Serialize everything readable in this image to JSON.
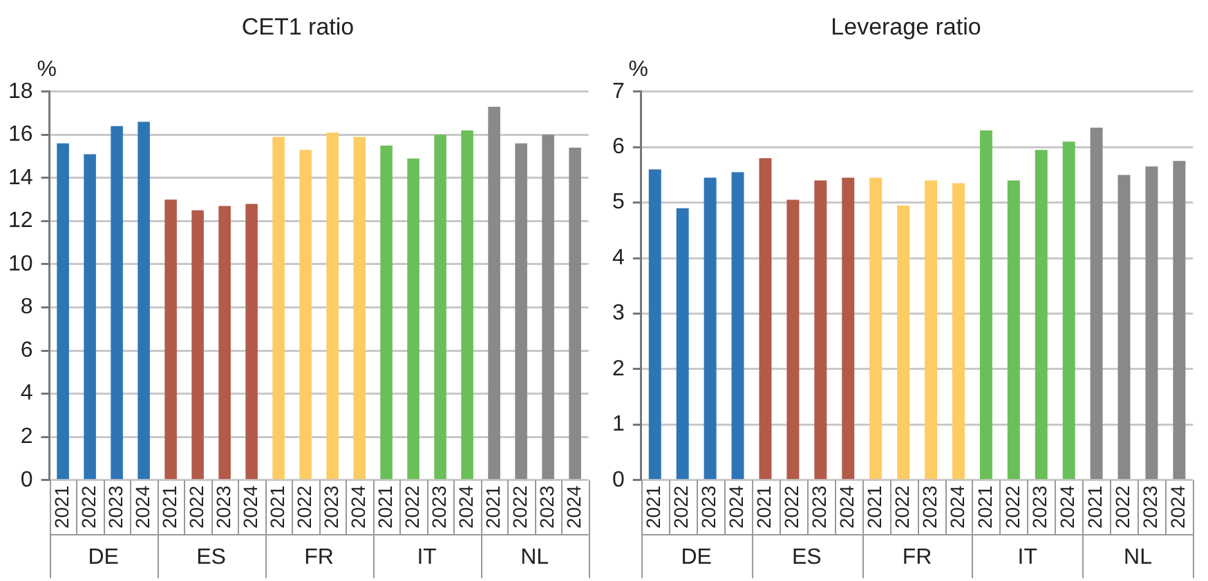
{
  "chart_data": [
    {
      "type": "bar",
      "title": "CET1 ratio",
      "ylabel": "%",
      "categories": [
        "2021",
        "2022",
        "2023",
        "2024",
        "2021",
        "2022",
        "2023",
        "2024",
        "2021",
        "2022",
        "2023",
        "2024",
        "2021",
        "2022",
        "2023",
        "2024",
        "2021",
        "2022",
        "2023",
        "2024"
      ],
      "series": [
        {
          "name": "DE",
          "color": "#2e75b6",
          "values": [
            15.6,
            15.1,
            16.4,
            16.6,
            null,
            null,
            null,
            null,
            null,
            null,
            null,
            null,
            null,
            null,
            null,
            null,
            null,
            null,
            null,
            null
          ]
        },
        {
          "name": "ES",
          "color": "#b35a49",
          "values": [
            null,
            null,
            null,
            null,
            13.0,
            12.5,
            12.7,
            12.8,
            null,
            null,
            null,
            null,
            null,
            null,
            null,
            null,
            null,
            null,
            null,
            null
          ]
        },
        {
          "name": "FR",
          "color": "#fdcc62",
          "values": [
            null,
            null,
            null,
            null,
            null,
            null,
            null,
            null,
            15.9,
            15.3,
            16.1,
            15.9,
            null,
            null,
            null,
            null,
            null,
            null,
            null,
            null
          ]
        },
        {
          "name": "IT",
          "color": "#6abf59",
          "values": [
            null,
            null,
            null,
            null,
            null,
            null,
            null,
            null,
            null,
            null,
            null,
            null,
            15.5,
            14.9,
            16.0,
            16.2,
            null,
            null,
            null,
            null
          ]
        },
        {
          "name": "NL",
          "color": "#898989",
          "values": [
            null,
            null,
            null,
            null,
            null,
            null,
            null,
            null,
            null,
            null,
            null,
            null,
            null,
            null,
            null,
            null,
            17.3,
            15.6,
            16.0,
            15.4
          ]
        }
      ],
      "ylim": [
        0,
        18
      ],
      "yticks": [
        0,
        2,
        4,
        6,
        8,
        10,
        12,
        14,
        16,
        18
      ],
      "grid": "y",
      "legend": false
    },
    {
      "type": "bar",
      "title": "Leverage ratio",
      "ylabel": "%",
      "categories": [
        "2021",
        "2022",
        "2023",
        "2024",
        "2021",
        "2022",
        "2023",
        "2024",
        "2021",
        "2022",
        "2023",
        "2024",
        "2021",
        "2022",
        "2023",
        "2024",
        "2021",
        "2022",
        "2023",
        "2024"
      ],
      "series": [
        {
          "name": "DE",
          "color": "#2e75b6",
          "values": [
            5.6,
            4.9,
            5.45,
            5.55,
            null,
            null,
            null,
            null,
            null,
            null,
            null,
            null,
            null,
            null,
            null,
            null,
            null,
            null,
            null,
            null
          ]
        },
        {
          "name": "ES",
          "color": "#b35a49",
          "values": [
            null,
            null,
            null,
            null,
            5.8,
            5.05,
            5.4,
            5.45,
            null,
            null,
            null,
            null,
            null,
            null,
            null,
            null,
            null,
            null,
            null,
            null
          ]
        },
        {
          "name": "FR",
          "color": "#fdcc62",
          "values": [
            null,
            null,
            null,
            null,
            null,
            null,
            null,
            null,
            5.45,
            4.95,
            5.4,
            5.35,
            null,
            null,
            null,
            null,
            null,
            null,
            null,
            null
          ]
        },
        {
          "name": "IT",
          "color": "#6abf59",
          "values": [
            null,
            null,
            null,
            null,
            null,
            null,
            null,
            null,
            null,
            null,
            null,
            null,
            6.3,
            5.4,
            5.95,
            6.1,
            null,
            null,
            null,
            null
          ]
        },
        {
          "name": "NL",
          "color": "#898989",
          "values": [
            null,
            null,
            null,
            null,
            null,
            null,
            null,
            null,
            null,
            null,
            null,
            null,
            null,
            null,
            null,
            null,
            6.35,
            5.5,
            5.65,
            5.75
          ]
        }
      ],
      "ylim": [
        0,
        7
      ],
      "yticks": [
        0,
        1,
        2,
        3,
        4,
        5,
        6,
        7
      ],
      "grid": "y",
      "legend": false
    }
  ]
}
